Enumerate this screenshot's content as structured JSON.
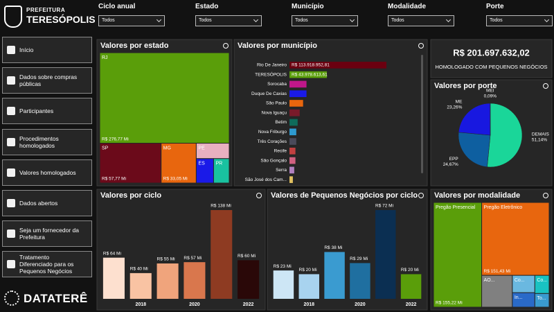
{
  "header": {
    "org": "PREFEITURA",
    "city": "TERESÓPOLIS"
  },
  "filters": [
    {
      "label": "Ciclo anual",
      "value": "Todos"
    },
    {
      "label": "Estado",
      "value": "Todos"
    },
    {
      "label": "Município",
      "value": "Todos"
    },
    {
      "label": "Modalidade",
      "value": "Todos"
    },
    {
      "label": "Porte",
      "value": "Todos"
    }
  ],
  "nav": [
    "Início",
    "Dados sobre compras públicas",
    "Participantes",
    "Procedimentos homologados",
    "Valores homologados",
    "Dados abertos",
    "Seja um fornecedor da Prefeitura",
    "Tratamento Diferenciado para os Pequenos Negócios"
  ],
  "brand": "DATATERÊ",
  "kpi": {
    "value": "R$ 201.697.632,02",
    "label": "HOMOLOGADO COM PEQUENOS NEGÓCIOS"
  },
  "estado": {
    "type": "treemap",
    "title": "Valores por estado",
    "categories": [
      "RJ",
      "SP",
      "MG",
      "PE",
      "ES",
      "PR"
    ],
    "values": [
      276.77,
      57.77,
      33.05,
      12,
      10,
      9
    ],
    "value_labels": [
      "R$ 276,77 Mi",
      "R$ 57,77 Mi",
      "R$ 33,05 Mi",
      null,
      null,
      null
    ],
    "colors": [
      "#5a9e0a",
      "#6b0a1a",
      "#e8660e",
      "#e8b0c0",
      "#1a1ae8",
      "#19c2a0"
    ]
  },
  "municipio": {
    "type": "hbar",
    "title": "Valores por município",
    "categories": [
      "Rio De Janeiro",
      "TERESÓPOLIS",
      "Sorocaba",
      "Duque De Caxias",
      "São Paulo",
      "Nova Iguaçu",
      "Betim",
      "Nova Friburgo",
      "Três Corações",
      "Recife",
      "São Gonçalo",
      "Serra",
      "São José dos Cam..."
    ],
    "values": [
      113918952.81,
      43978613.61,
      20000000,
      20000000,
      16000000,
      12000000,
      9600000,
      8000000,
      8000000,
      7000000,
      7000000,
      5600000,
      4000000
    ],
    "value_labels": [
      "R$ 113.918.952,81",
      "R$ 43.978.613,61",
      null,
      null,
      null,
      null,
      null,
      null,
      null,
      null,
      null,
      null,
      null
    ],
    "colors": [
      "#6b0010",
      "#5a9e0a",
      "#c0178a",
      "#1a1ae8",
      "#e8660e",
      "#7a1a2a",
      "#0f6b5a",
      "#2e9ad0",
      "#4a4a5a",
      "#c04040",
      "#d06080",
      "#b080c0",
      "#e0c060"
    ]
  },
  "porte": {
    "type": "pie",
    "title": "Valores por porte",
    "categories": [
      "DEMAIS",
      "EPP",
      "ME",
      "MEI"
    ],
    "values": [
      51.14,
      24.67,
      23.26,
      0.09
    ],
    "value_labels": [
      "51,14%",
      "24,67%",
      "23,26%",
      "0,09%"
    ],
    "colors": [
      "#1ad699",
      "#0e5fa0",
      "#1818e0",
      "#e05a30"
    ]
  },
  "ciclo": {
    "type": "bar",
    "title": "Valores por ciclo",
    "categories": [
      null,
      "2018",
      null,
      "2020",
      null,
      "2022"
    ],
    "values": [
      64,
      40,
      55,
      57,
      138,
      60
    ],
    "value_labels": [
      "R$ 64 Mi",
      "R$ 40 Mi",
      "R$ 55 Mi",
      "R$ 57 Mi",
      "R$ 138 Mi",
      "R$ 60 Mi"
    ],
    "colors": [
      "#fde0cf",
      "#f9c3a3",
      "#f0a47c",
      "#d9774d",
      "#8e3b22",
      "#2a0808"
    ]
  },
  "pequenos_negocios": {
    "type": "bar",
    "title": "Valores de Pequenos Negócios por ciclo",
    "categories": [
      null,
      "2018",
      null,
      "2020",
      null,
      "2022"
    ],
    "values": [
      23,
      20,
      38,
      29,
      72,
      20
    ],
    "value_labels": [
      "R$ 23 Mi",
      "R$ 20 Mi",
      "R$ 38 Mi",
      "R$ 29 Mi",
      "R$ 72 Mi",
      "R$ 20 Mi"
    ],
    "colors": [
      "#cde6f5",
      "#a8d3ef",
      "#3a9bd0",
      "#1f6fa0",
      "#0b2f52",
      "#5a9e0a"
    ]
  },
  "modalidade": {
    "type": "treemap",
    "title": "Valores por modalidade",
    "categories": [
      "Pregão Presencial",
      "Pregão Eletrônico",
      "AO...",
      "Co...",
      "In...",
      "Co...",
      "To..."
    ],
    "values": [
      155.22,
      151.43,
      30,
      12,
      10,
      8,
      6
    ],
    "value_labels": [
      "R$ 155,22 Mi",
      "R$ 151,43 Mi",
      null,
      null,
      null,
      null,
      null
    ],
    "colors": [
      "#5a9e0a",
      "#e8660e",
      "#808080",
      "#6ab8e0",
      "#2a6ac8",
      "#19c2c2",
      "#3a9bd0"
    ]
  }
}
